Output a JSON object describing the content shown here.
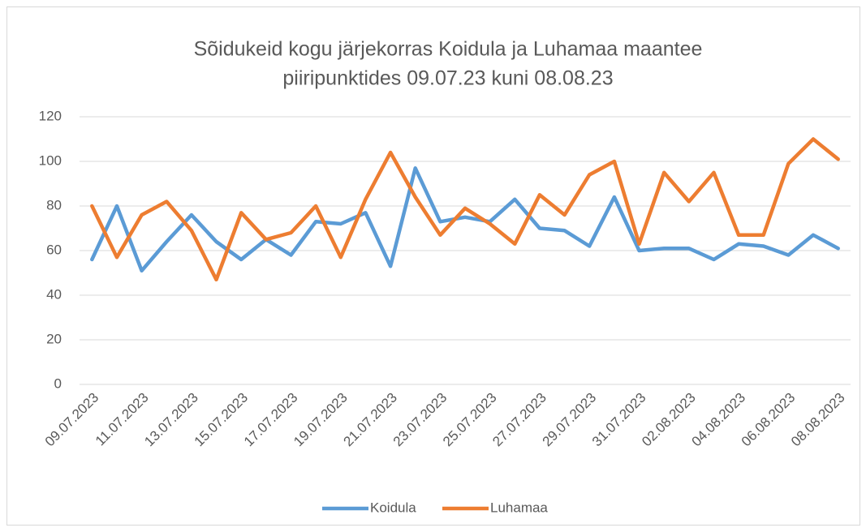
{
  "chart_data": {
    "type": "line",
    "title": [
      "Sõidukeid kogu järjekorras Koidula ja Luhamaa maantee",
      "piiripunktides 09.07.23 kuni 08.08.23"
    ],
    "categories": [
      "09.07.2023",
      null,
      "11.07.2023",
      null,
      "13.07.2023",
      null,
      "15.07.2023",
      null,
      "17.07.2023",
      null,
      "19.07.2023",
      null,
      "21.07.2023",
      null,
      "23.07.2023",
      null,
      "25.07.2023",
      null,
      "27.07.2023",
      null,
      "29.07.2023",
      null,
      "31.07.2023",
      null,
      "02.08.2023",
      null,
      "04.08.2023",
      null,
      "06.08.2023",
      null,
      "08.08.2023"
    ],
    "series": [
      {
        "name": "Koidula",
        "color": "#5b9bd5",
        "values": [
          56,
          80,
          51,
          64,
          76,
          64,
          56,
          65,
          58,
          73,
          72,
          77,
          53,
          97,
          73,
          75,
          73,
          83,
          70,
          69,
          62,
          84,
          60,
          61,
          61,
          56,
          63,
          62,
          58,
          67,
          61
        ]
      },
      {
        "name": "Luhamaa",
        "color": "#ed7d31",
        "values": [
          80,
          57,
          76,
          82,
          69,
          47,
          77,
          65,
          68,
          80,
          57,
          83,
          104,
          84,
          67,
          79,
          72,
          63,
          85,
          76,
          94,
          100,
          63,
          95,
          82,
          95,
          67,
          67,
          99,
          110,
          101
        ]
      }
    ],
    "ylim": [
      0,
      120
    ],
    "yticks": [
      0,
      20,
      40,
      60,
      80,
      100,
      120
    ],
    "grid": true,
    "legend": "bottom"
  }
}
